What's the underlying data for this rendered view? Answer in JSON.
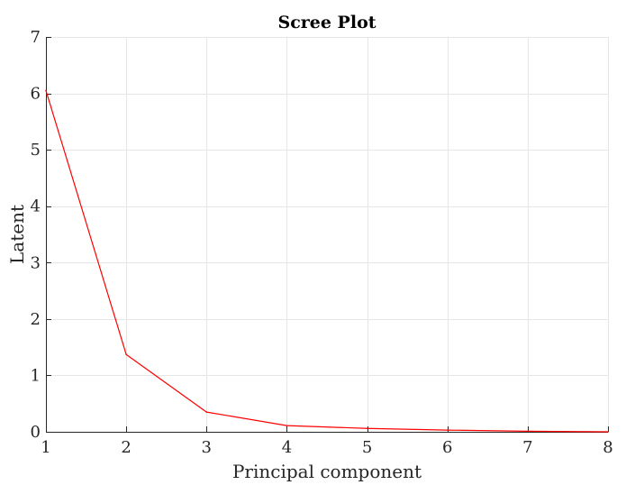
{
  "chart_data": {
    "type": "line",
    "title": "Scree Plot",
    "xlabel": "Principal component",
    "ylabel": "Latent",
    "xlim": [
      1,
      8
    ],
    "ylim": [
      0,
      7
    ],
    "xticks": [
      "1",
      "2",
      "3",
      "4",
      "5",
      "6",
      "7",
      "8"
    ],
    "yticks": [
      "0",
      "1",
      "2",
      "3",
      "4",
      "5",
      "6",
      "7"
    ],
    "grid": true,
    "legend": "none",
    "x": [
      1,
      2,
      3,
      4,
      5,
      6,
      7,
      8
    ],
    "series": [
      {
        "values": [
          6.05,
          1.37,
          0.35,
          0.11,
          0.06,
          0.03,
          0.01,
          0.0
        ],
        "color": "#ff0000"
      }
    ]
  }
}
